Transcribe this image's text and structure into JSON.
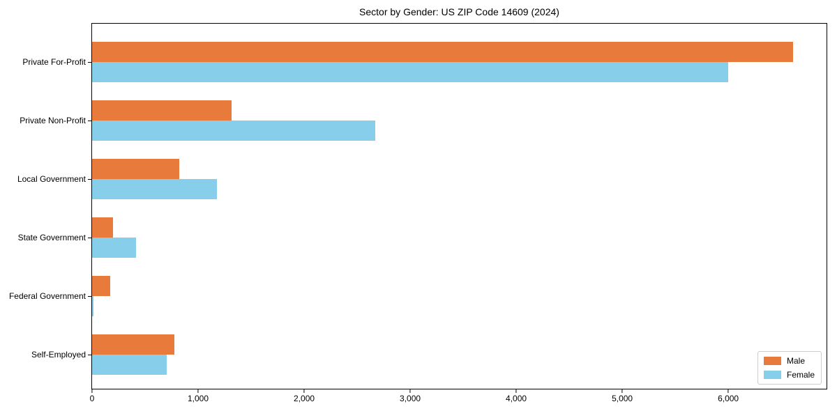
{
  "chart_data": {
    "type": "bar",
    "orientation": "horizontal",
    "title": "Sector by Gender: US ZIP Code 14609 (2024)",
    "categories": [
      "Private For-Profit",
      "Private Non-Profit",
      "Local Government",
      "State Government",
      "Federal Government",
      "Self-Employed"
    ],
    "series": [
      {
        "name": "Male",
        "color": "#e87b3c",
        "values": [
          6610,
          1315,
          825,
          195,
          170,
          775
        ]
      },
      {
        "name": "Female",
        "color": "#87ceeb",
        "values": [
          6000,
          2670,
          1180,
          415,
          15,
          705
        ]
      }
    ],
    "xlabel": "",
    "ylabel": "",
    "xlim": [
      0,
      6940
    ],
    "xticks": [
      0,
      1000,
      2000,
      3000,
      4000,
      5000,
      6000
    ],
    "xtick_labels": [
      "0",
      "1,000",
      "2,000",
      "3,000",
      "4,000",
      "5,000",
      "6,000"
    ],
    "grid": false,
    "background_color": "#ffffff",
    "axis_color": "#000000",
    "legend": {
      "position": "lower right",
      "entries": [
        "Male",
        "Female"
      ]
    }
  }
}
